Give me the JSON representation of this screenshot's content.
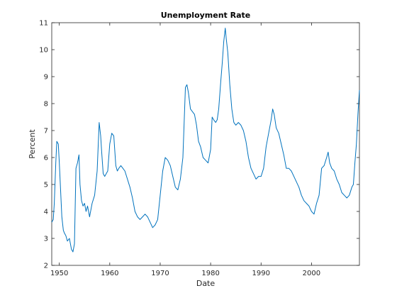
{
  "chart_data": {
    "type": "line",
    "title": "Unemployment Rate",
    "xlabel": "Date",
    "ylabel": "Percent",
    "xlim": [
      1948.5,
      2009.5
    ],
    "ylim": [
      2,
      11
    ],
    "xticks": [
      1950,
      1960,
      1970,
      1980,
      1990,
      2000
    ],
    "yticks": [
      2,
      3,
      4,
      5,
      6,
      7,
      8,
      9,
      10,
      11
    ],
    "grid": false,
    "line_color": "#0072BD",
    "series": [
      {
        "x": [
          1948.5,
          1948.8,
          1949.0,
          1949.3,
          1949.5,
          1949.8,
          1950.0,
          1950.3,
          1950.5,
          1950.8,
          1951.0,
          1951.3,
          1951.6,
          1952.0,
          1952.4,
          1952.7,
          1953.0,
          1953.3,
          1953.6,
          1953.9,
          1954.1,
          1954.4,
          1954.7,
          1955.0,
          1955.3,
          1955.6,
          1956.0,
          1956.5,
          1957.0,
          1957.5,
          1957.9,
          1958.2,
          1958.4,
          1958.7,
          1959.0,
          1959.3,
          1959.6,
          1960.0,
          1960.4,
          1960.8,
          1961.2,
          1961.5,
          1961.8,
          1962.2,
          1962.6,
          1963.0,
          1963.5,
          1964.0,
          1964.5,
          1965.0,
          1965.5,
          1966.0,
          1966.5,
          1967.0,
          1967.5,
          1968.0,
          1968.5,
          1969.0,
          1969.5,
          1970.0,
          1970.5,
          1971.0,
          1971.5,
          1972.0,
          1972.5,
          1973.0,
          1973.5,
          1974.0,
          1974.5,
          1975.0,
          1975.3,
          1975.6,
          1976.0,
          1976.4,
          1976.8,
          1977.2,
          1977.6,
          1978.0,
          1978.5,
          1979.0,
          1979.5,
          1980.0,
          1980.3,
          1980.6,
          1981.0,
          1981.3,
          1981.6,
          1982.0,
          1982.3,
          1982.6,
          1982.9,
          1983.1,
          1983.4,
          1983.8,
          1984.2,
          1984.6,
          1985.0,
          1985.5,
          1986.0,
          1986.5,
          1987.0,
          1987.5,
          1988.0,
          1988.5,
          1989.0,
          1989.5,
          1990.0,
          1990.5,
          1991.0,
          1991.5,
          1992.0,
          1992.3,
          1992.6,
          1993.0,
          1993.5,
          1994.0,
          1994.5,
          1995.0,
          1995.5,
          1996.0,
          1996.5,
          1997.0,
          1997.5,
          1998.0,
          1998.5,
          1999.0,
          1999.5,
          2000.0,
          2000.5,
          2001.0,
          2001.5,
          2002.0,
          2002.5,
          2003.0,
          2003.3,
          2003.6,
          2004.0,
          2004.5,
          2005.0,
          2005.5,
          2006.0,
          2006.5,
          2007.0,
          2007.5,
          2008.0,
          2008.3,
          2008.6,
          2008.9,
          2009.2,
          2009.5
        ],
        "y": [
          3.6,
          3.7,
          4.3,
          5.8,
          6.6,
          6.5,
          5.8,
          4.6,
          3.8,
          3.3,
          3.2,
          3.1,
          2.9,
          3.0,
          2.6,
          2.5,
          2.8,
          5.6,
          5.8,
          6.1,
          5.0,
          4.4,
          4.2,
          4.3,
          4.0,
          4.2,
          3.8,
          4.3,
          4.6,
          5.5,
          7.3,
          6.8,
          6.2,
          5.4,
          5.3,
          5.4,
          5.5,
          6.5,
          6.9,
          6.8,
          5.7,
          5.5,
          5.6,
          5.7,
          5.6,
          5.5,
          5.2,
          4.9,
          4.5,
          4.0,
          3.8,
          3.7,
          3.8,
          3.9,
          3.8,
          3.6,
          3.4,
          3.5,
          3.7,
          4.6,
          5.5,
          6.0,
          5.9,
          5.7,
          5.3,
          4.9,
          4.8,
          5.2,
          6.0,
          8.6,
          8.7,
          8.4,
          7.8,
          7.7,
          7.6,
          7.2,
          6.6,
          6.4,
          6.0,
          5.9,
          5.8,
          6.3,
          7.5,
          7.4,
          7.3,
          7.4,
          7.8,
          8.8,
          9.5,
          10.3,
          10.8,
          10.4,
          9.9,
          8.7,
          7.8,
          7.3,
          7.2,
          7.3,
          7.2,
          7.0,
          6.6,
          6.0,
          5.6,
          5.4,
          5.2,
          5.3,
          5.3,
          5.6,
          6.4,
          6.9,
          7.4,
          7.8,
          7.6,
          7.1,
          6.9,
          6.5,
          6.1,
          5.6,
          5.6,
          5.5,
          5.3,
          5.1,
          4.9,
          4.6,
          4.4,
          4.3,
          4.2,
          4.0,
          3.9,
          4.3,
          4.6,
          5.6,
          5.7,
          6.0,
          6.2,
          5.8,
          5.6,
          5.5,
          5.2,
          5.0,
          4.7,
          4.6,
          4.5,
          4.6,
          4.9,
          5.0,
          5.8,
          6.5,
          7.6,
          8.5
        ]
      }
    ]
  }
}
